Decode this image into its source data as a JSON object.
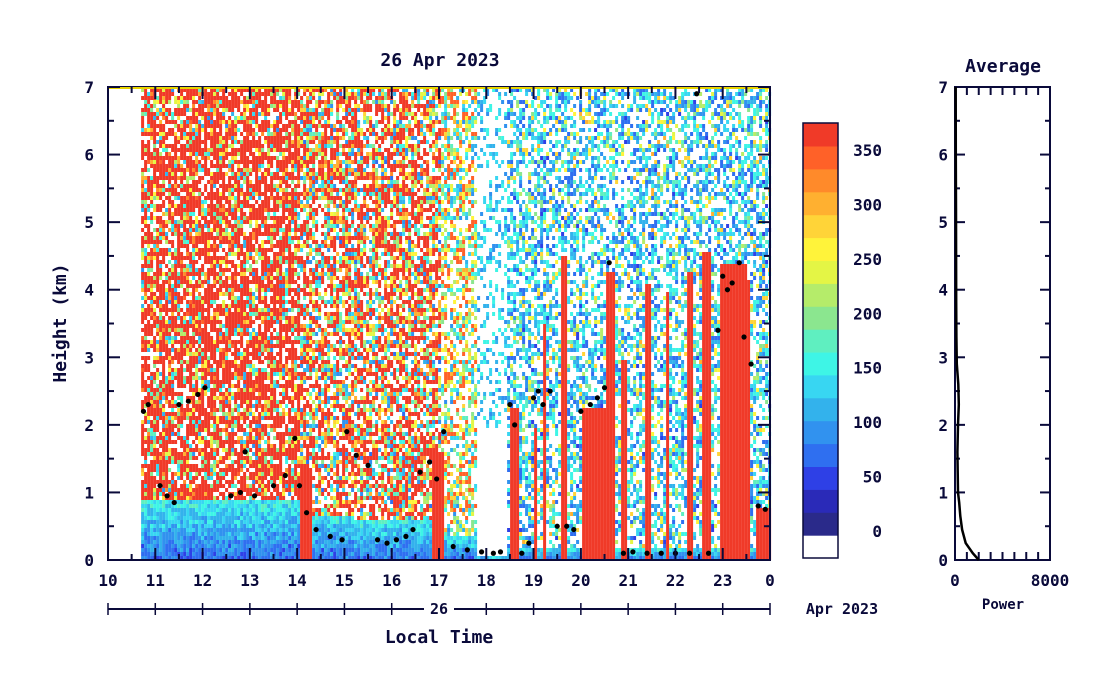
{
  "chart_data": [
    {
      "type": "heatmap",
      "title": "26 Apr 2023",
      "xlabel": "Local Time",
      "ylabel": "Height (km)",
      "xlim": [
        10,
        24
      ],
      "ylim": [
        0,
        7
      ],
      "x_ticks": [
        "10",
        "11",
        "12",
        "13",
        "14",
        "15",
        "16",
        "17",
        "18",
        "19",
        "20",
        "21",
        "22",
        "23",
        "0"
      ],
      "y_ticks": [
        "0",
        "1",
        "2",
        "3",
        "4",
        "5",
        "6",
        "7"
      ],
      "date_row": {
        "day": "26",
        "month_year": "Apr 2023"
      },
      "data_start_hour": 10.7,
      "colorbar": {
        "ticks": [
          "0",
          "50",
          "100",
          "150",
          "200",
          "250",
          "300",
          "350"
        ],
        "range": [
          -25,
          375
        ],
        "colors": [
          "#ffffff",
          "#2a2a8a",
          "#2a2ab8",
          "#2e40e6",
          "#2f6ff0",
          "#3192ef",
          "#33b2ec",
          "#38d6f2",
          "#3ef5e6",
          "#5fefc0",
          "#8be68f",
          "#b5ec6a",
          "#e4f545",
          "#fff33a",
          "#ffd438",
          "#ffb030",
          "#ff8a2a",
          "#ff6128",
          "#f03a28"
        ]
      },
      "regions": [
        {
          "x": [
            10.7,
            14.0
          ],
          "mode": "clutter-high",
          "surface_top": 0.9
        },
        {
          "x": [
            14.0,
            15.2
          ],
          "mode": "clutter-mid",
          "surface_top": 0.7
        },
        {
          "x": [
            15.2,
            17.0
          ],
          "mode": "clutter-mid",
          "surface_top": 0.6
        },
        {
          "x": [
            17.0,
            17.8
          ],
          "mode": "mixed",
          "surface_top": 0.4
        },
        {
          "x": [
            17.8,
            18.4
          ],
          "mode": "clear",
          "surface_top": 0.1
        },
        {
          "x": [
            18.4,
            24.0
          ],
          "mode": "blue",
          "surface_top": 0.2
        }
      ],
      "red_columns": [
        {
          "x": [
            14.0,
            14.3
          ],
          "top": 1.4
        },
        {
          "x": [
            16.85,
            17.1
          ],
          "top": 1.6
        },
        {
          "x": [
            18.45,
            18.65
          ],
          "top": 2.3
        },
        {
          "x": [
            18.95,
            19.05
          ],
          "top": 2.0
        },
        {
          "x": [
            19.15,
            19.25
          ],
          "top": 3.5
        },
        {
          "x": [
            19.55,
            19.7
          ],
          "top": 4.5
        },
        {
          "x": [
            20.0,
            20.5
          ],
          "top": 2.3
        },
        {
          "x": [
            20.5,
            20.7
          ],
          "top": 4.3
        },
        {
          "x": [
            20.85,
            20.95
          ],
          "top": 3.0
        },
        {
          "x": [
            21.3,
            21.45
          ],
          "top": 4.1
        },
        {
          "x": [
            21.75,
            21.85
          ],
          "top": 4.0
        },
        {
          "x": [
            22.2,
            22.35
          ],
          "top": 4.3
        },
        {
          "x": [
            22.55,
            22.7
          ],
          "top": 4.6
        },
        {
          "x": [
            22.9,
            23.5
          ],
          "top": 4.4
        },
        {
          "x": [
            23.5,
            23.55
          ],
          "top": 4.2
        },
        {
          "x": [
            23.7,
            24.0
          ],
          "top": 0.8
        }
      ],
      "cloud_base_points": [
        [
          10.75,
          2.2
        ],
        [
          10.85,
          2.3
        ],
        [
          11.1,
          1.1
        ],
        [
          11.25,
          0.95
        ],
        [
          11.4,
          0.85
        ],
        [
          11.5,
          2.3
        ],
        [
          11.7,
          2.35
        ],
        [
          11.9,
          2.45
        ],
        [
          12.05,
          2.55
        ],
        [
          12.6,
          0.95
        ],
        [
          12.8,
          1.0
        ],
        [
          12.9,
          1.6
        ],
        [
          13.1,
          0.95
        ],
        [
          13.5,
          1.1
        ],
        [
          13.75,
          1.25
        ],
        [
          13.95,
          1.8
        ],
        [
          14.05,
          1.1
        ],
        [
          14.2,
          0.7
        ],
        [
          14.4,
          0.45
        ],
        [
          14.7,
          0.35
        ],
        [
          14.95,
          0.3
        ],
        [
          15.05,
          1.9
        ],
        [
          15.25,
          1.55
        ],
        [
          15.5,
          1.4
        ],
        [
          15.7,
          0.3
        ],
        [
          15.9,
          0.25
        ],
        [
          16.1,
          0.3
        ],
        [
          16.3,
          0.35
        ],
        [
          16.45,
          0.45
        ],
        [
          16.6,
          1.3
        ],
        [
          16.8,
          1.45
        ],
        [
          16.95,
          1.2
        ],
        [
          17.1,
          1.9
        ],
        [
          17.3,
          0.2
        ],
        [
          17.6,
          0.15
        ],
        [
          17.9,
          0.12
        ],
        [
          18.15,
          0.1
        ],
        [
          18.3,
          0.12
        ],
        [
          18.5,
          2.3
        ],
        [
          18.6,
          2.0
        ],
        [
          18.75,
          0.1
        ],
        [
          18.9,
          0.25
        ],
        [
          19.0,
          2.4
        ],
        [
          19.1,
          2.5
        ],
        [
          19.2,
          2.3
        ],
        [
          19.35,
          2.5
        ],
        [
          19.5,
          0.5
        ],
        [
          19.7,
          0.5
        ],
        [
          19.85,
          0.45
        ],
        [
          20.0,
          2.2
        ],
        [
          20.2,
          2.3
        ],
        [
          20.35,
          2.4
        ],
        [
          20.5,
          2.55
        ],
        [
          20.6,
          4.4
        ],
        [
          20.9,
          0.1
        ],
        [
          21.1,
          0.12
        ],
        [
          21.4,
          0.1
        ],
        [
          21.7,
          0.1
        ],
        [
          22.0,
          0.1
        ],
        [
          22.3,
          0.1
        ],
        [
          22.45,
          6.9
        ],
        [
          22.7,
          0.1
        ],
        [
          22.9,
          3.4
        ],
        [
          23.0,
          4.2
        ],
        [
          23.1,
          4.0
        ],
        [
          23.2,
          4.1
        ],
        [
          23.35,
          4.4
        ],
        [
          23.45,
          3.3
        ],
        [
          23.6,
          2.9
        ],
        [
          23.75,
          0.8
        ],
        [
          23.9,
          0.75
        ]
      ]
    },
    {
      "type": "line",
      "title": "Average",
      "xlabel": "Power",
      "ylabel": "",
      "xlim": [
        0,
        8000
      ],
      "ylim": [
        0,
        7
      ],
      "x_ticks": [
        "0",
        "8000"
      ],
      "y_ticks": [
        "0",
        "1",
        "2",
        "3",
        "4",
        "5",
        "6",
        "7"
      ],
      "x": [
        2000,
        1500,
        900,
        600,
        450,
        350,
        250,
        230,
        200,
        250,
        320,
        280,
        150,
        120,
        100,
        90,
        80,
        70,
        60
      ],
      "y": [
        0.0,
        0.1,
        0.25,
        0.45,
        0.65,
        0.85,
        1.0,
        1.3,
        1.6,
        2.0,
        2.3,
        2.6,
        2.9,
        3.3,
        3.8,
        4.5,
        5.2,
        6.0,
        7.0
      ]
    }
  ]
}
